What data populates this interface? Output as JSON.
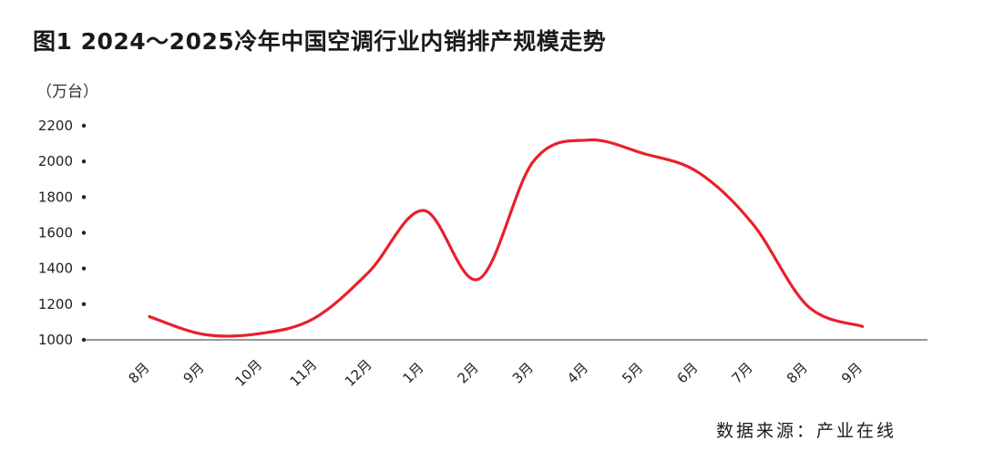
{
  "chart_data": {
    "type": "line",
    "title": "图1 2024～2025冷年中国空调行业内销排产规模走势",
    "ylabel": "（万台）",
    "xlabel": "",
    "ylim": [
      1000,
      2200
    ],
    "y_ticks": [
      1000,
      1200,
      1400,
      1600,
      1800,
      2000,
      2200
    ],
    "categories": [
      "8月",
      "9月",
      "10月",
      "11月",
      "12月",
      "1月",
      "2月",
      "3月",
      "4月",
      "5月",
      "6月",
      "7月",
      "8月",
      "9月"
    ],
    "series": [
      {
        "color": "#e8202a",
        "values": [
          1130,
          1030,
          1035,
          1120,
          1380,
          1725,
          1340,
          2000,
          2120,
          2045,
          1940,
          1650,
          1190,
          1075
        ]
      }
    ],
    "grid": false,
    "legend": "none",
    "source": "数据来源：产业在线"
  }
}
